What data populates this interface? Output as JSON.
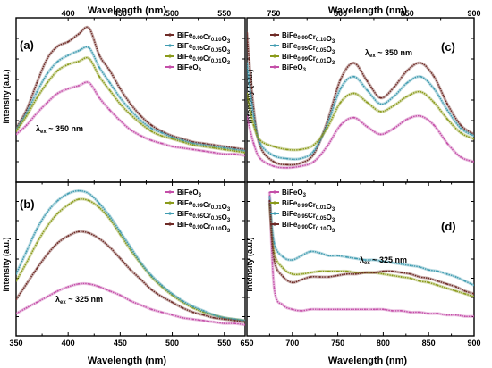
{
  "figure": {
    "top_xlabel_left": "Wavelength (nm)",
    "top_xlabel_right": "Wavelength (nm)",
    "bottom_xlabel_left": "Wavelength (nm)",
    "bottom_xlabel_right": "Wavelength (nm)",
    "ylabel": "Intensity (a.u.)"
  },
  "chart_data": [
    {
      "panel": "(a)",
      "type": "line",
      "excitation_label": "λex ~ 350 nm",
      "xlim": [
        350,
        570
      ],
      "xticks": [
        400,
        450,
        500,
        550
      ],
      "xtick_labels_top": [
        "400",
        "450",
        "500",
        "550"
      ],
      "ylim": [
        0,
        1
      ],
      "x": [
        350,
        360,
        370,
        380,
        390,
        400,
        410,
        420,
        430,
        440,
        450,
        460,
        470,
        480,
        490,
        500,
        510,
        520,
        530,
        540,
        550,
        560,
        570
      ],
      "series": [
        {
          "name": "BiFe0.90Cr0.10O3",
          "color": "#6e2a26",
          "values": [
            0.32,
            0.44,
            0.62,
            0.78,
            0.86,
            0.89,
            0.94,
            0.98,
            0.8,
            0.7,
            0.58,
            0.48,
            0.4,
            0.34,
            0.3,
            0.27,
            0.25,
            0.23,
            0.22,
            0.21,
            0.2,
            0.19,
            0.18
          ]
        },
        {
          "name": "BiFe0.95Cr0.05O3",
          "color": "#3f9bb0",
          "values": [
            0.31,
            0.42,
            0.56,
            0.68,
            0.76,
            0.8,
            0.83,
            0.85,
            0.72,
            0.62,
            0.52,
            0.44,
            0.37,
            0.32,
            0.29,
            0.26,
            0.24,
            0.22,
            0.21,
            0.2,
            0.19,
            0.18,
            0.17
          ]
        },
        {
          "name": "BiFe0.99Cr0.01O3",
          "color": "#8a9a1a",
          "values": [
            0.3,
            0.4,
            0.52,
            0.62,
            0.7,
            0.74,
            0.76,
            0.78,
            0.66,
            0.57,
            0.48,
            0.41,
            0.35,
            0.3,
            0.27,
            0.25,
            0.23,
            0.21,
            0.2,
            0.19,
            0.18,
            0.17,
            0.16
          ]
        },
        {
          "name": "BiFeO3",
          "color": "#c44ea8",
          "values": [
            0.28,
            0.34,
            0.42,
            0.49,
            0.55,
            0.58,
            0.6,
            0.62,
            0.52,
            0.44,
            0.37,
            0.31,
            0.27,
            0.24,
            0.22,
            0.2,
            0.19,
            0.18,
            0.17,
            0.16,
            0.15,
            0.15,
            0.14
          ]
        }
      ]
    },
    {
      "panel": "(b)",
      "type": "line",
      "excitation_label": "λex ~ 325 nm",
      "xlim": [
        350,
        570
      ],
      "xticks": [
        350,
        400,
        450,
        500,
        550
      ],
      "xtick_labels": [
        "350",
        "400",
        "450",
        "500",
        "550"
      ],
      "ylim": [
        0,
        1
      ],
      "x": [
        350,
        360,
        370,
        380,
        390,
        400,
        410,
        420,
        430,
        440,
        450,
        460,
        470,
        480,
        490,
        500,
        510,
        520,
        530,
        540,
        550,
        560,
        570
      ],
      "series": [
        {
          "name": "BiFeO3",
          "color": "#c44ea8",
          "values": [
            0.12,
            0.16,
            0.2,
            0.24,
            0.28,
            0.31,
            0.33,
            0.33,
            0.31,
            0.28,
            0.25,
            0.21,
            0.18,
            0.15,
            0.13,
            0.11,
            0.09,
            0.08,
            0.07,
            0.06,
            0.05,
            0.05,
            0.04
          ]
        },
        {
          "name": "BiFe0.99Cr0.01O3",
          "color": "#8a9a1a",
          "values": [
            0.35,
            0.48,
            0.62,
            0.74,
            0.83,
            0.89,
            0.93,
            0.92,
            0.87,
            0.79,
            0.68,
            0.57,
            0.47,
            0.38,
            0.31,
            0.25,
            0.2,
            0.16,
            0.13,
            0.11,
            0.09,
            0.08,
            0.07
          ]
        },
        {
          "name": "BiFe0.95Cr0.05O3",
          "color": "#3f9bb0",
          "values": [
            0.4,
            0.56,
            0.72,
            0.84,
            0.92,
            0.97,
            0.99,
            0.97,
            0.9,
            0.81,
            0.7,
            0.59,
            0.48,
            0.39,
            0.32,
            0.26,
            0.21,
            0.17,
            0.14,
            0.11,
            0.09,
            0.08,
            0.07
          ]
        },
        {
          "name": "BiFe0.90Cr0.10O3",
          "color": "#6e2a26",
          "values": [
            0.22,
            0.33,
            0.44,
            0.54,
            0.62,
            0.67,
            0.7,
            0.69,
            0.65,
            0.59,
            0.51,
            0.43,
            0.36,
            0.29,
            0.24,
            0.2,
            0.16,
            0.13,
            0.11,
            0.09,
            0.08,
            0.07,
            0.06
          ]
        }
      ]
    },
    {
      "panel": "(c)",
      "type": "line",
      "excitation_label": "λex ~ 350 nm",
      "xlim": [
        730,
        900
      ],
      "xticks": [
        750,
        800,
        850,
        900
      ],
      "xtick_labels_top": [
        "750",
        "800",
        "850",
        "900"
      ],
      "ylim": [
        0,
        1
      ],
      "x": [
        730,
        735,
        740,
        750,
        760,
        770,
        780,
        790,
        800,
        810,
        820,
        830,
        840,
        850,
        860,
        870,
        880,
        890,
        900
      ],
      "series": [
        {
          "name": "BiFe0.90Cr0.10O3",
          "color": "#6e2a26",
          "values": [
            0.95,
            0.45,
            0.2,
            0.1,
            0.08,
            0.09,
            0.15,
            0.36,
            0.64,
            0.75,
            0.63,
            0.52,
            0.59,
            0.7,
            0.75,
            0.66,
            0.48,
            0.34,
            0.28
          ]
        },
        {
          "name": "BiFe0.95Cr0.05O3",
          "color": "#3f9bb0",
          "values": [
            0.75,
            0.4,
            0.22,
            0.14,
            0.12,
            0.12,
            0.17,
            0.34,
            0.58,
            0.66,
            0.57,
            0.48,
            0.53,
            0.62,
            0.66,
            0.58,
            0.44,
            0.32,
            0.27
          ]
        },
        {
          "name": "BiFe0.99Cr0.01O3",
          "color": "#8a9a1a",
          "values": [
            0.55,
            0.34,
            0.24,
            0.2,
            0.18,
            0.18,
            0.21,
            0.32,
            0.49,
            0.55,
            0.49,
            0.43,
            0.47,
            0.53,
            0.56,
            0.49,
            0.38,
            0.29,
            0.25
          ]
        },
        {
          "name": "BiFeO3",
          "color": "#c44ea8",
          "values": [
            0.4,
            0.22,
            0.12,
            0.07,
            0.06,
            0.07,
            0.1,
            0.2,
            0.34,
            0.39,
            0.33,
            0.28,
            0.32,
            0.38,
            0.4,
            0.34,
            0.22,
            0.13,
            0.1
          ]
        }
      ]
    },
    {
      "panel": "(d)",
      "type": "line",
      "excitation_label": "λex ~ 325 nm",
      "xlim": [
        650,
        900
      ],
      "xticks": [
        650,
        700,
        750,
        800,
        850,
        900
      ],
      "xtick_labels": [
        "650",
        "700",
        "750",
        "800",
        "850",
        "900"
      ],
      "ylim": [
        0,
        1
      ],
      "x": [
        675,
        680,
        690,
        700,
        710,
        720,
        730,
        740,
        750,
        760,
        770,
        780,
        790,
        800,
        810,
        820,
        830,
        840,
        850,
        860,
        870,
        880,
        890,
        900
      ],
      "series": [
        {
          "name": "BiFeO3",
          "color": "#c44ea8",
          "values": [
            0.98,
            0.3,
            0.18,
            0.15,
            0.14,
            0.15,
            0.15,
            0.15,
            0.15,
            0.15,
            0.15,
            0.15,
            0.15,
            0.15,
            0.14,
            0.14,
            0.13,
            0.13,
            0.12,
            0.12,
            0.11,
            0.11,
            0.1,
            0.1
          ]
        },
        {
          "name": "BiFe0.99Cr0.01O3",
          "color": "#8a9a1a",
          "values": [
            0.9,
            0.55,
            0.44,
            0.4,
            0.4,
            0.41,
            0.42,
            0.42,
            0.42,
            0.42,
            0.41,
            0.41,
            0.41,
            0.4,
            0.39,
            0.38,
            0.37,
            0.35,
            0.34,
            0.32,
            0.3,
            0.28,
            0.26,
            0.24
          ]
        },
        {
          "name": "BiFe0.95Cr0.05O3",
          "color": "#3f9bb0",
          "values": [
            0.95,
            0.62,
            0.52,
            0.5,
            0.53,
            0.56,
            0.55,
            0.53,
            0.53,
            0.52,
            0.51,
            0.5,
            0.5,
            0.49,
            0.48,
            0.47,
            0.46,
            0.45,
            0.43,
            0.42,
            0.4,
            0.38,
            0.35,
            0.32
          ]
        },
        {
          "name": "BiFe0.90Cr0.10O3",
          "color": "#6e2a26",
          "values": [
            0.92,
            0.5,
            0.38,
            0.34,
            0.36,
            0.38,
            0.38,
            0.38,
            0.39,
            0.4,
            0.4,
            0.41,
            0.41,
            0.42,
            0.42,
            0.41,
            0.4,
            0.38,
            0.37,
            0.35,
            0.33,
            0.31,
            0.28,
            0.26
          ]
        }
      ]
    }
  ]
}
